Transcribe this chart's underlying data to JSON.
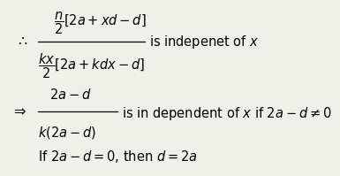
{
  "background_color": "#f0f0eb",
  "therefore": "∴",
  "arrow": "⇒",
  "line1_num": "$\\dfrac{n}{2}[2a + xd - d]$",
  "line1_den": "$\\dfrac{kx}{2}[2a + kdx - d]$",
  "line1_text": "is indepenet of $x$",
  "line2_num": "$2a-d$",
  "line2_den": "$k(2a-d)$",
  "line2_text": "is in dependent of $x$ if $2a - d \\neq 0$",
  "line3_text": "If $2a - d = 0$, then $d = 2a$",
  "fontsize": 10.5
}
